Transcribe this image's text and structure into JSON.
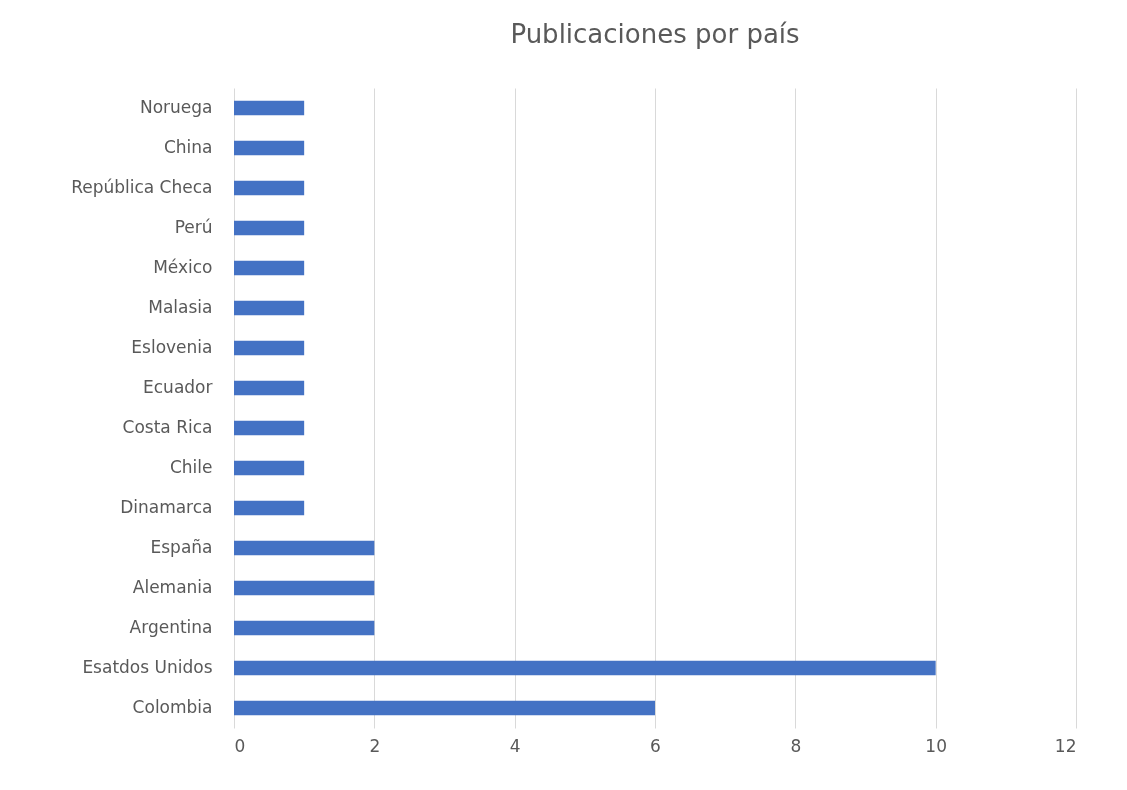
{
  "chart_data": {
    "type": "bar",
    "orientation": "horizontal",
    "title": "Publicaciones por país",
    "categories": [
      "Noruega",
      "China",
      "República Checa",
      "Perú",
      "México",
      "Malasia",
      "Eslovenia",
      "Ecuador",
      "Costa Rica",
      "Chile",
      "Dinamarca",
      "España",
      "Alemania",
      "Argentina",
      "Esatdos Unidos",
      "Colombia"
    ],
    "values": [
      1,
      1,
      1,
      1,
      1,
      1,
      1,
      1,
      1,
      1,
      1,
      2,
      2,
      2,
      10,
      6
    ],
    "color": "#4472c4",
    "xlim": [
      0,
      12
    ],
    "xticks": [
      0,
      2,
      4,
      6,
      8,
      10,
      12
    ],
    "grid": "x"
  }
}
